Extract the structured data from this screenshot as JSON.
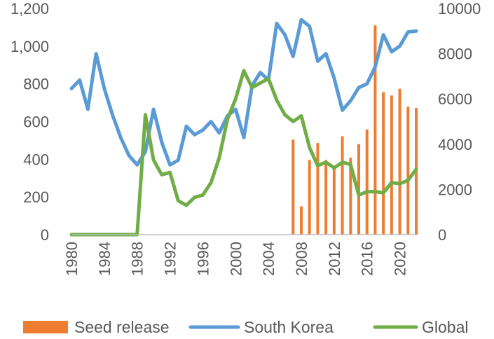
{
  "chart_data": {
    "type": "bar+line",
    "title": "",
    "xlabel": "",
    "ylabel_left": "",
    "ylabel_right": "",
    "x_ticks": [
      "1980",
      "1984",
      "1988",
      "1992",
      "1996",
      "2000",
      "2004",
      "2008",
      "2012",
      "2016",
      "2020"
    ],
    "left_axis": {
      "min": 0,
      "max": 1200,
      "ticks": [
        "0",
        "200",
        "400",
        "600",
        "800",
        "1,000",
        "1,200"
      ],
      "tick_values": [
        0,
        200,
        400,
        600,
        800,
        1000,
        1200
      ]
    },
    "right_axis": {
      "min": 0,
      "max": 10000,
      "ticks": [
        "0",
        "2000",
        "4000",
        "6000",
        "8000",
        "10000"
      ],
      "tick_values": [
        0,
        2000,
        4000,
        6000,
        8000,
        10000
      ]
    },
    "grid": false,
    "legend_position": "bottom",
    "series": [
      {
        "name": "Seed release",
        "kind": "bar",
        "axis": "right",
        "color": "#ED7D31",
        "x": [
          2007,
          2008,
          2009,
          2010,
          2011,
          2012,
          2013,
          2014,
          2015,
          2016,
          2017,
          2018,
          2019,
          2020,
          2021,
          2022
        ],
        "values": [
          4200,
          1250,
          3300,
          4050,
          3300,
          3000,
          4350,
          3400,
          4000,
          4650,
          9250,
          6300,
          6150,
          6450,
          5650,
          5600
        ]
      },
      {
        "name": "South Korea",
        "kind": "line",
        "axis": "left",
        "color": "#5B9BD5",
        "x": [
          1980,
          1981,
          1982,
          1983,
          1984,
          1985,
          1986,
          1987,
          1988,
          1989,
          1990,
          1991,
          1992,
          1993,
          1994,
          1995,
          1996,
          1997,
          1998,
          1999,
          2000,
          2001,
          2002,
          2003,
          2004,
          2005,
          2006,
          2007,
          2008,
          2009,
          2010,
          2011,
          2012,
          2013,
          2014,
          2015,
          2016,
          2017,
          2018,
          2019,
          2020,
          2021,
          2022
        ],
        "values": [
          775,
          820,
          665,
          960,
          775,
          635,
          515,
          420,
          370,
          440,
          665,
          490,
          370,
          395,
          575,
          530,
          555,
          600,
          540,
          630,
          665,
          515,
          790,
          860,
          820,
          1120,
          1060,
          945,
          1140,
          1105,
          920,
          960,
          830,
          660,
          710,
          780,
          800,
          890,
          1060,
          970,
          1000,
          1075,
          1080
        ]
      },
      {
        "name": "Global",
        "kind": "line",
        "axis": "right",
        "color": "#70AD47",
        "x": [
          1980,
          1981,
          1982,
          1983,
          1984,
          1985,
          1986,
          1987,
          1988,
          1989,
          1990,
          1991,
          1992,
          1993,
          1994,
          1995,
          1996,
          1997,
          1998,
          1999,
          2000,
          2001,
          2002,
          2003,
          2004,
          2005,
          2006,
          2007,
          2008,
          2009,
          2010,
          2011,
          2012,
          2013,
          2014,
          2015,
          2016,
          2017,
          2018,
          2019,
          2020,
          2021,
          2022
        ],
        "values": [
          0,
          0,
          0,
          0,
          0,
          0,
          0,
          0,
          0,
          5300,
          3300,
          2650,
          2750,
          1500,
          1300,
          1650,
          1750,
          2300,
          3400,
          5100,
          6000,
          7250,
          6500,
          6700,
          6900,
          5950,
          5300,
          5000,
          5250,
          3850,
          3050,
          3200,
          2950,
          3200,
          3100,
          1750,
          1900,
          1900,
          1850,
          2300,
          2250,
          2400,
          2900
        ]
      }
    ]
  }
}
